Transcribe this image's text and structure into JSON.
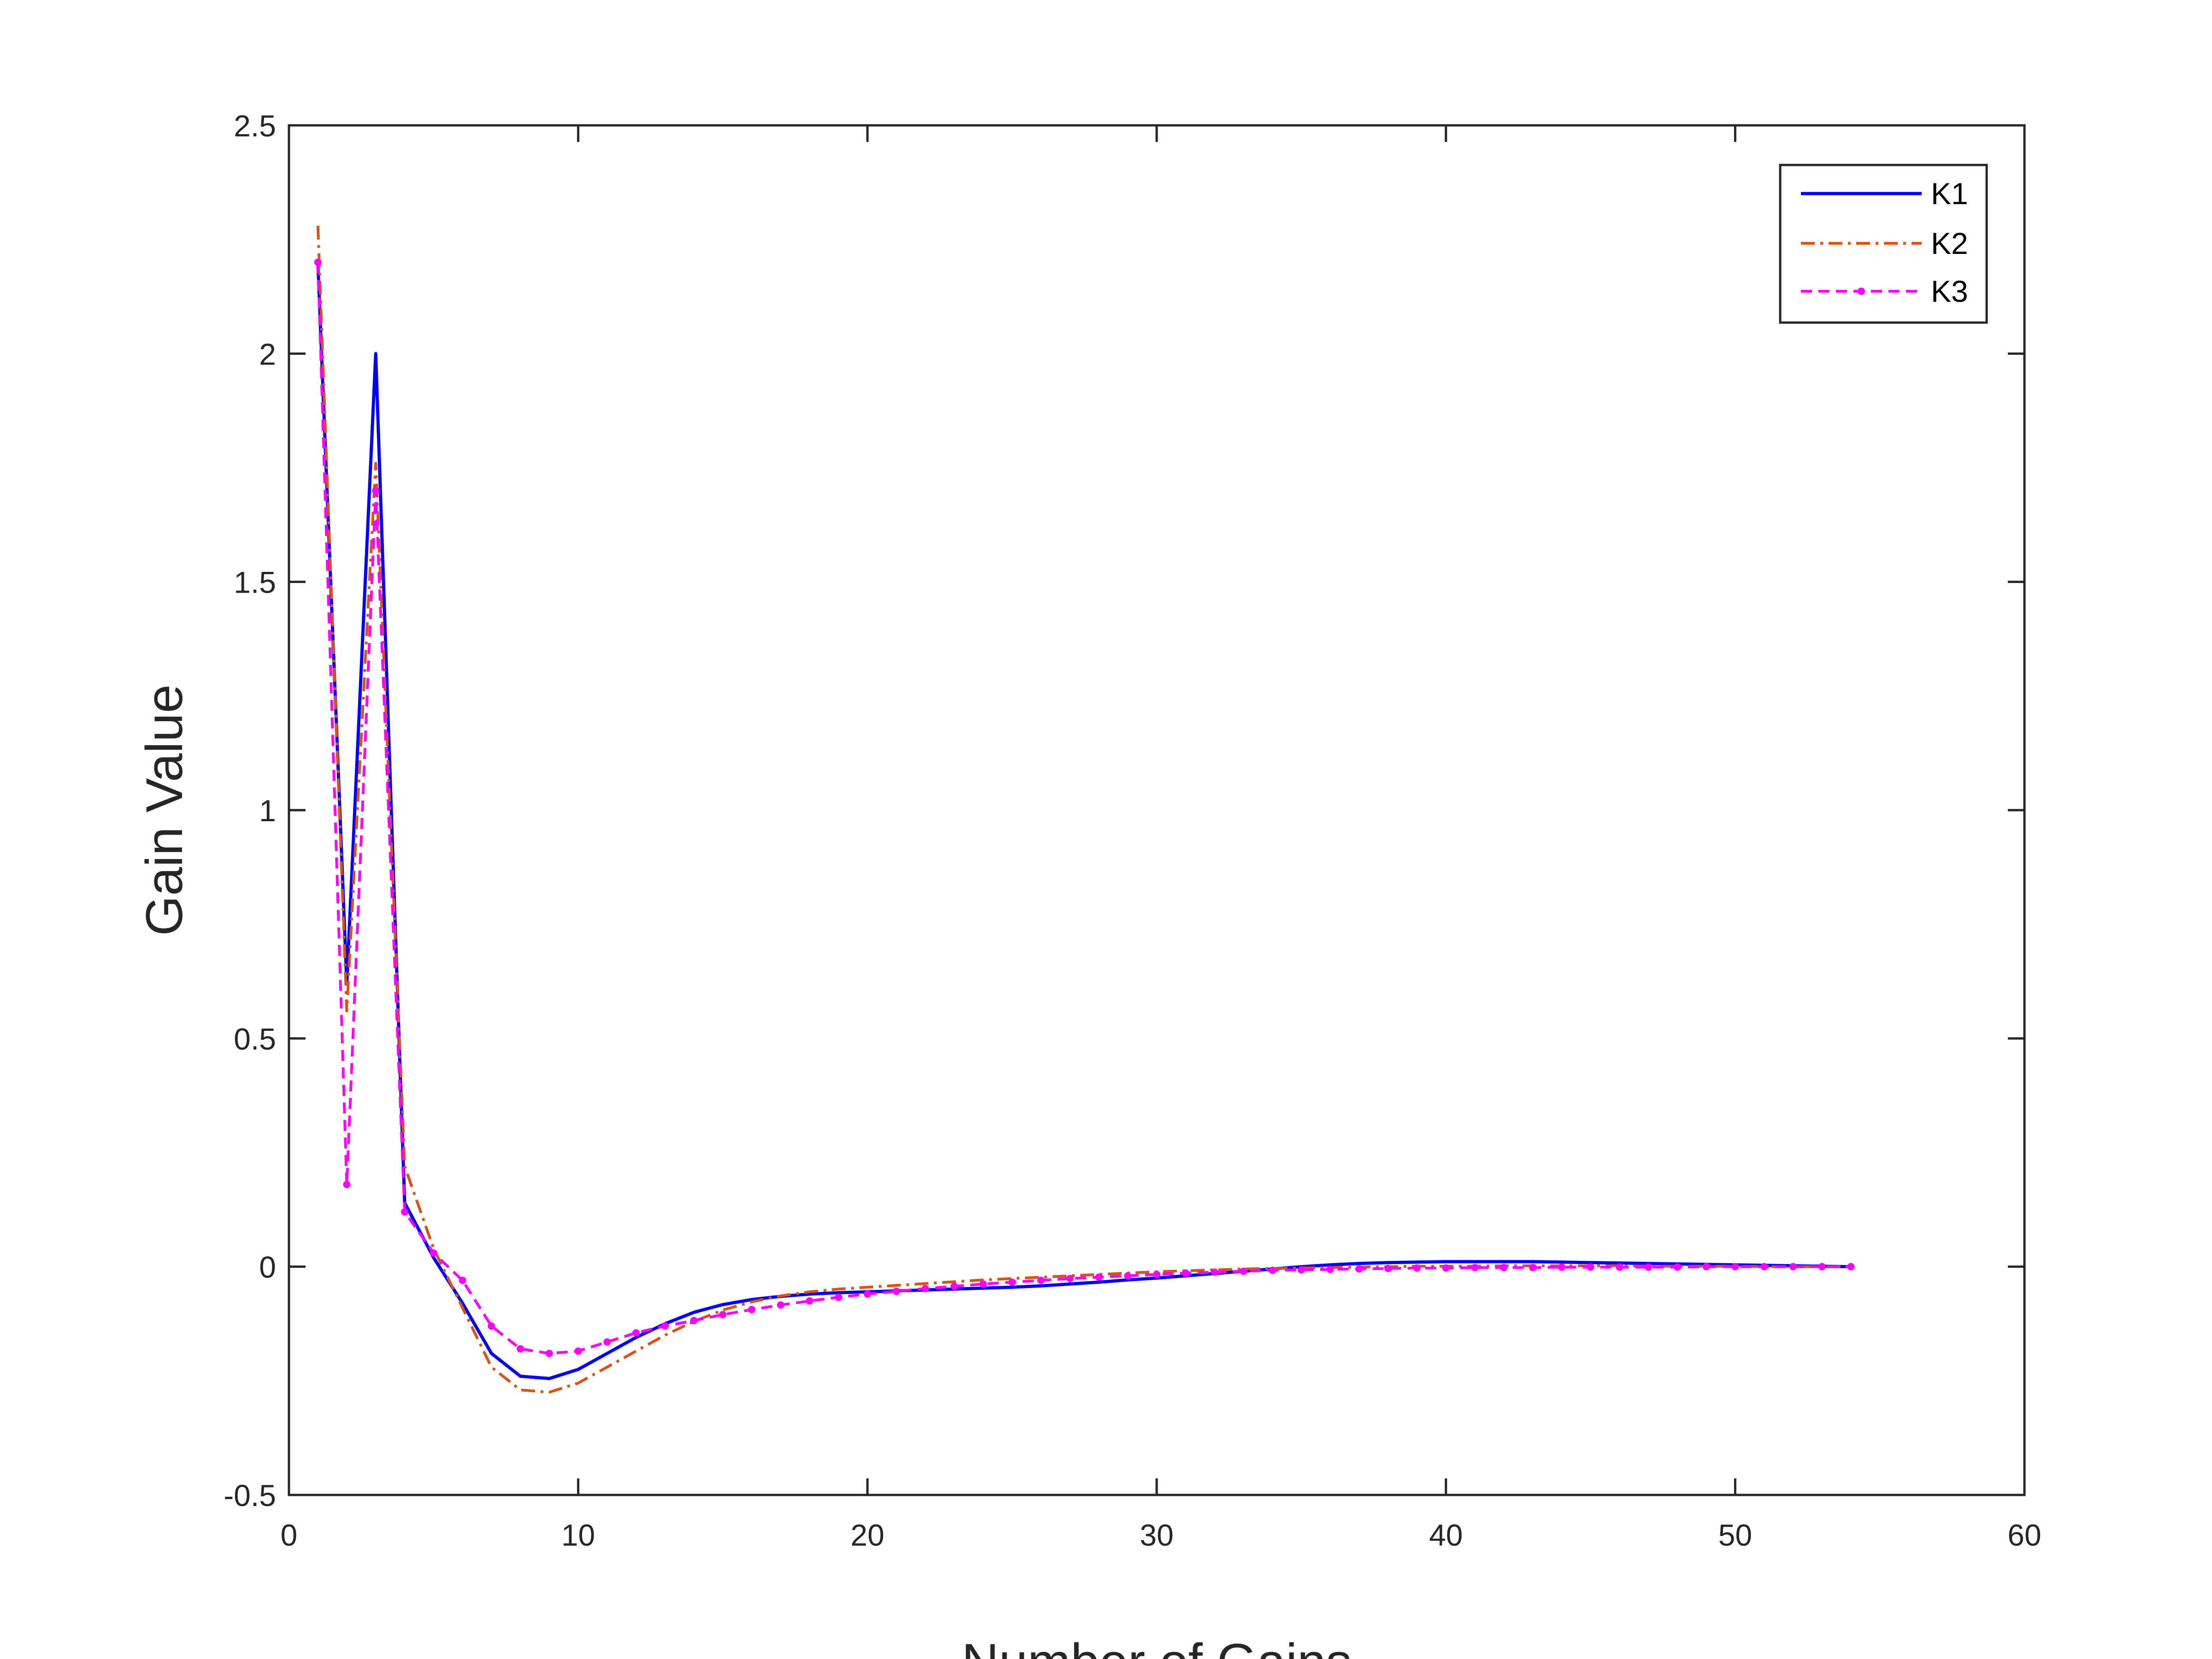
{
  "chart_data": {
    "type": "line",
    "title": "",
    "xlabel": "Number of Gains",
    "ylabel": "Gain Value",
    "xlim": [
      0,
      60
    ],
    "ylim": [
      -0.5,
      2.5
    ],
    "xticks": [
      0,
      10,
      20,
      30,
      40,
      50,
      60
    ],
    "yticks": [
      -0.5,
      0,
      0.5,
      1,
      1.5,
      2,
      2.5
    ],
    "xtick_labels": [
      "0",
      "10",
      "20",
      "30",
      "40",
      "50",
      "60"
    ],
    "ytick_labels": [
      "-0.5",
      "0",
      "0.5",
      "1",
      "1.5",
      "2",
      "2.5"
    ],
    "grid": false,
    "box": true,
    "legend_position": "top-right",
    "x": [
      1,
      2,
      3,
      4,
      5,
      6,
      7,
      8,
      9,
      10,
      11,
      12,
      13,
      14,
      15,
      16,
      17,
      18,
      19,
      20,
      21,
      22,
      23,
      24,
      25,
      26,
      27,
      28,
      29,
      30,
      31,
      32,
      33,
      34,
      35,
      36,
      37,
      38,
      39,
      40,
      41,
      42,
      43,
      44,
      45,
      46,
      47,
      48,
      49,
      50,
      51,
      52,
      53,
      54
    ],
    "series": [
      {
        "name": "K1",
        "color": "#0000FF",
        "line_style": "solid",
        "values": [
          2.2,
          0.62,
          2.0,
          0.14,
          0.02,
          -0.08,
          -0.19,
          -0.24,
          -0.245,
          -0.225,
          -0.19,
          -0.155,
          -0.125,
          -0.1,
          -0.083,
          -0.072,
          -0.065,
          -0.06,
          -0.057,
          -0.055,
          -0.053,
          -0.051,
          -0.049,
          -0.047,
          -0.045,
          -0.042,
          -0.038,
          -0.034,
          -0.029,
          -0.025,
          -0.02,
          -0.015,
          -0.01,
          -0.005,
          0.0,
          0.004,
          0.007,
          0.009,
          0.01,
          0.011,
          0.011,
          0.011,
          0.011,
          0.01,
          0.009,
          0.008,
          0.007,
          0.006,
          0.005,
          0.004,
          0.003,
          0.002,
          0.001,
          0.0
        ]
      },
      {
        "name": "K2",
        "color": "#D95319",
        "line_style": "dashdot",
        "values": [
          2.28,
          0.56,
          1.76,
          0.22,
          0.04,
          -0.09,
          -0.22,
          -0.27,
          -0.275,
          -0.255,
          -0.22,
          -0.185,
          -0.15,
          -0.12,
          -0.095,
          -0.077,
          -0.064,
          -0.055,
          -0.049,
          -0.045,
          -0.041,
          -0.037,
          -0.033,
          -0.029,
          -0.026,
          -0.023,
          -0.02,
          -0.017,
          -0.014,
          -0.011,
          -0.009,
          -0.007,
          -0.005,
          -0.004,
          -0.003,
          -0.002,
          -0.001,
          0.0,
          0.001,
          0.001,
          0.001,
          0.002,
          0.002,
          0.002,
          0.002,
          0.002,
          0.001,
          0.001,
          0.001,
          0.001,
          0.0,
          0.0,
          0.0,
          0.0
        ]
      },
      {
        "name": "K3",
        "color": "#FF00FF",
        "line_style": "dashed",
        "marker": "point",
        "values": [
          2.2,
          0.18,
          1.7,
          0.12,
          0.03,
          -0.03,
          -0.13,
          -0.18,
          -0.19,
          -0.185,
          -0.165,
          -0.145,
          -0.13,
          -0.118,
          -0.105,
          -0.094,
          -0.084,
          -0.075,
          -0.067,
          -0.06,
          -0.054,
          -0.048,
          -0.043,
          -0.038,
          -0.034,
          -0.03,
          -0.026,
          -0.023,
          -0.02,
          -0.017,
          -0.014,
          -0.012,
          -0.01,
          -0.008,
          -0.007,
          -0.006,
          -0.005,
          -0.004,
          -0.003,
          -0.003,
          -0.002,
          -0.002,
          -0.002,
          -0.001,
          -0.001,
          -0.001,
          -0.001,
          -0.001,
          0.0,
          0.0,
          0.0,
          0.0,
          0.0,
          0.0
        ]
      }
    ]
  }
}
